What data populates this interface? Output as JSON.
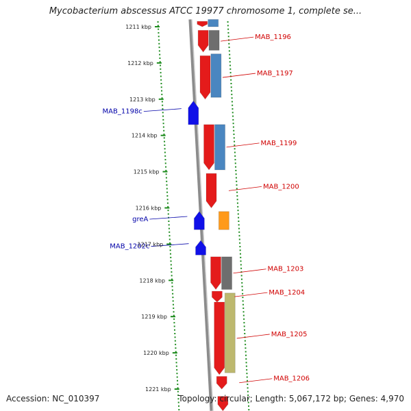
{
  "map": {
    "title": "Mycobacterium abscessus ATCC 19977 chromosome 1, complete se...",
    "accession_text": "Accession: NC_010397",
    "summary_text": "Topology: circular; Length: 5,067,172 bp; Genes: 4,970"
  },
  "ruler": {
    "unit": "kbp",
    "ticks": [
      {
        "value": 1211,
        "label": "1211 kbp"
      },
      {
        "value": 1212,
        "label": "1212 kbp"
      },
      {
        "value": 1213,
        "label": "1213 kbp"
      },
      {
        "value": 1214,
        "label": "1214 kbp"
      },
      {
        "value": 1215,
        "label": "1215 kbp"
      },
      {
        "value": 1216,
        "label": "1216 kbp"
      },
      {
        "value": 1217,
        "label": "1217 kbp"
      },
      {
        "value": 1218,
        "label": "1218 kbp"
      },
      {
        "value": 1219,
        "label": "1219 kbp"
      },
      {
        "value": 1220,
        "label": "1220 kbp"
      },
      {
        "value": 1221,
        "label": "1221 kbp"
      }
    ]
  },
  "colors": {
    "backbone": "#8c8c8c",
    "forward_gene": "#e41b1b",
    "reverse_gene": "#1010e8",
    "forward_label": "#d00000",
    "reverse_label": "#0000a8",
    "tick": "#1e8c1e",
    "feature_steelblue": "#4a86c0",
    "feature_gray": "#6e6e6e",
    "feature_khaki": "#bdb86e",
    "feature_orange": "#ff9a1a"
  },
  "genes": [
    {
      "strand": "+",
      "start": 1210.85,
      "end": 1211.0,
      "label": ""
    },
    {
      "strand": "+",
      "start": 1211.1,
      "end": 1211.7,
      "label": "MAB_1196"
    },
    {
      "strand": "+",
      "start": 1211.8,
      "end": 1213.0,
      "label": "MAB_1197"
    },
    {
      "strand": "-",
      "start": 1213.05,
      "end": 1213.7,
      "label": "MAB_1198c"
    },
    {
      "strand": "+",
      "start": 1213.7,
      "end": 1214.95,
      "label": "MAB_1199"
    },
    {
      "strand": "+",
      "start": 1215.05,
      "end": 1216.0,
      "label": "MAB_1200"
    },
    {
      "strand": "-",
      "start": 1216.1,
      "end": 1216.6,
      "label": "greA"
    },
    {
      "strand": "-",
      "start": 1216.9,
      "end": 1217.3,
      "label": "MAB_1202c"
    },
    {
      "strand": "+",
      "start": 1217.35,
      "end": 1218.25,
      "label": "MAB_1203"
    },
    {
      "strand": "+",
      "start": 1218.3,
      "end": 1218.6,
      "label": "MAB_1204"
    },
    {
      "strand": "+",
      "start": 1218.6,
      "end": 1220.6,
      "label": "MAB_1205"
    },
    {
      "strand": "+",
      "start": 1220.65,
      "end": 1221.0,
      "label": "MAB_1206"
    },
    {
      "strand": "+",
      "start": 1221.2,
      "end": 1221.6,
      "label": ""
    }
  ],
  "features": [
    {
      "color": "steelblue",
      "start": 1210.8,
      "end": 1211.0
    },
    {
      "color": "gray",
      "start": 1211.1,
      "end": 1211.65
    },
    {
      "color": "steelblue",
      "start": 1211.75,
      "end": 1212.95
    },
    {
      "color": "steelblue",
      "start": 1213.7,
      "end": 1214.95
    },
    {
      "color": "orange",
      "start": 1216.1,
      "end": 1216.6
    },
    {
      "color": "gray",
      "start": 1217.35,
      "end": 1218.25
    },
    {
      "color": "khaki",
      "start": 1218.35,
      "end": 1220.55
    }
  ]
}
